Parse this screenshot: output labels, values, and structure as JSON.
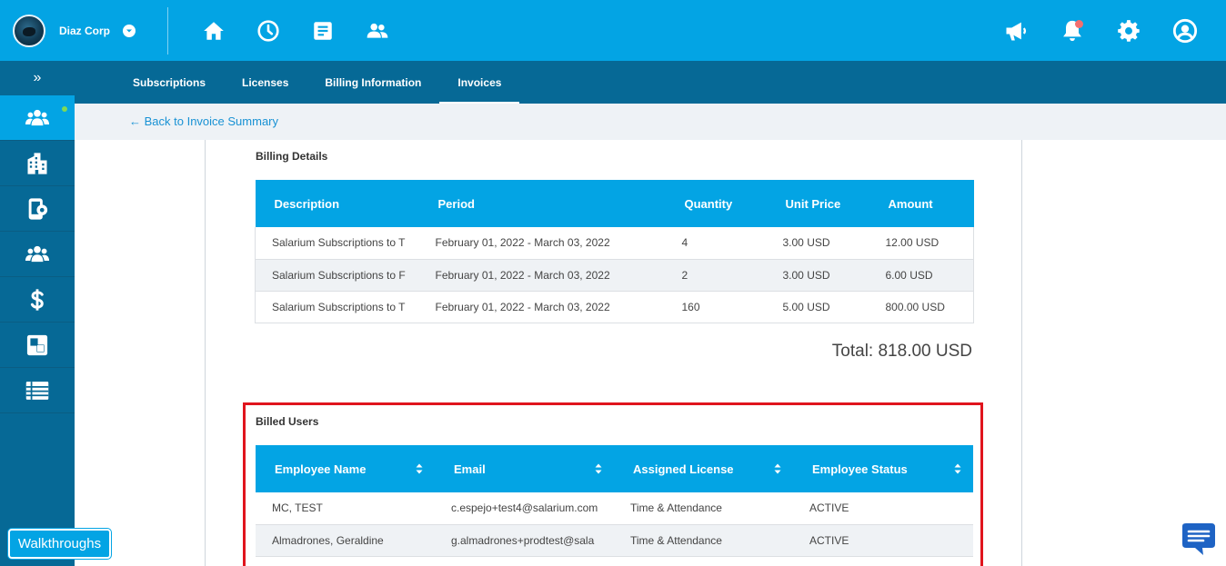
{
  "brand": {
    "name": "Diaz Corp",
    "logo_icon": "company-avatar",
    "caret_icon": "chevron-down-icon"
  },
  "top_nav": [
    {
      "name": "home-icon"
    },
    {
      "name": "clock-icon"
    },
    {
      "name": "document-icon"
    },
    {
      "name": "people-icon"
    }
  ],
  "top_right": [
    {
      "name": "megaphone-icon"
    },
    {
      "name": "bell-icon",
      "has_badge": true
    },
    {
      "name": "gear-icon"
    },
    {
      "name": "user-account-icon"
    }
  ],
  "sidebar": {
    "expand_label": "»",
    "items": [
      {
        "name": "users-group-icon",
        "active": true
      },
      {
        "name": "building-icon"
      },
      {
        "name": "mobile-settings-icon"
      },
      {
        "name": "team-icon"
      },
      {
        "name": "dollar-icon"
      },
      {
        "name": "squares-icon"
      },
      {
        "name": "list-icon"
      }
    ],
    "walkthroughs_label": "Walkthroughs"
  },
  "subnav": {
    "tabs": [
      {
        "label": "Subscriptions"
      },
      {
        "label": "Licenses"
      },
      {
        "label": "Billing Information"
      },
      {
        "label": "Invoices",
        "active": true
      }
    ]
  },
  "back_link": "← Back to Invoice Summary",
  "billing": {
    "title": "Billing Details",
    "headers": [
      "Description",
      "Period",
      "Quantity",
      "Unit Price",
      "Amount"
    ],
    "rows": [
      [
        "Salarium Subscriptions to T",
        "February 01, 2022 - March 03, 2022",
        "4",
        "3.00 USD",
        "12.00 USD"
      ],
      [
        "Salarium Subscriptions to F",
        "February 01, 2022 - March 03, 2022",
        "2",
        "3.00 USD",
        "6.00 USD"
      ],
      [
        "Salarium Subscriptions to T",
        "February 01, 2022 - March 03, 2022",
        "160",
        "5.00 USD",
        "800.00 USD"
      ]
    ],
    "total": "Total: 818.00 USD"
  },
  "billed_users": {
    "title": "Billed Users",
    "headers": [
      "Employee Name",
      "Email",
      "Assigned License",
      "Employee Status"
    ],
    "rows": [
      [
        "MC, TEST",
        "c.espejo+test4@salarium.com",
        "Time & Attendance",
        "ACTIVE"
      ],
      [
        "Almadrones, Geraldine",
        "g.almadrones+prodtest@sala",
        "Time & Attendance",
        "ACTIVE"
      ]
    ]
  },
  "colors": {
    "primary": "#03a4e4",
    "dark": "#066996",
    "highlight": "#e0141d",
    "link": "#1992d4"
  },
  "chat_icon": "chat-bubble-icon"
}
